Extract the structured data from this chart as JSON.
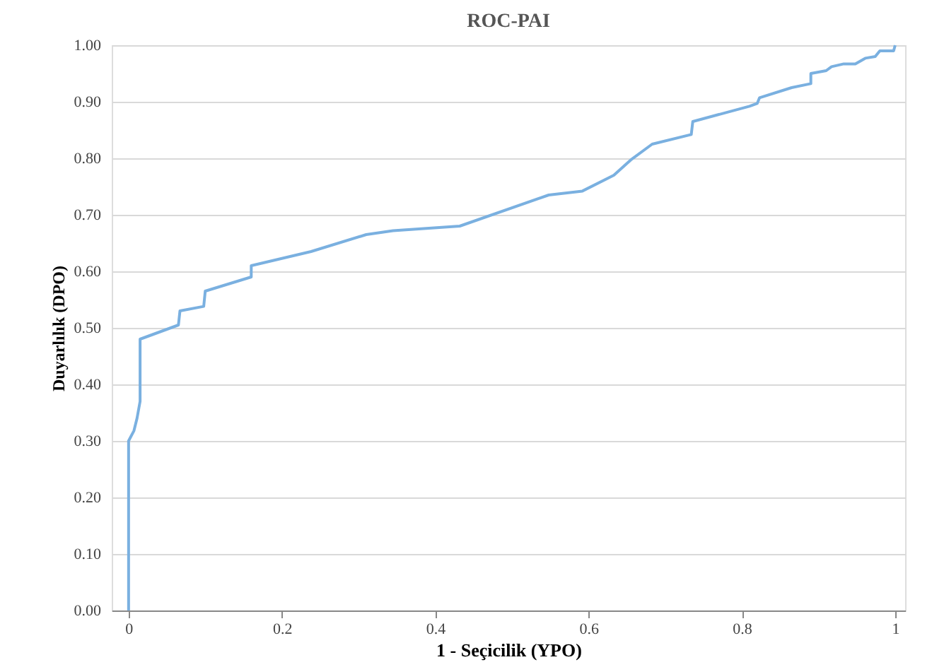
{
  "chart_data": {
    "type": "line",
    "title": "ROC-PAI",
    "xlabel": "1 - Seçicilik (YPO)",
    "ylabel": "Duyarlılık (DPO)",
    "x": [
      0,
      0,
      0.007,
      0.011,
      0.015,
      0.015,
      0.065,
      0.067,
      0.098,
      0.1,
      0.16,
      0.16,
      0.238,
      0.31,
      0.345,
      0.432,
      0.548,
      0.592,
      0.633,
      0.655,
      0.683,
      0.734,
      0.736,
      0.81,
      0.82,
      0.823,
      0.865,
      0.89,
      0.89,
      0.91,
      0.917,
      0.933,
      0.948,
      0.961,
      0.974,
      0.98,
      0.998,
      1.0
    ],
    "series": [
      {
        "color": "#7ab0e0",
        "values": [
          0,
          0.3,
          0.318,
          0.34,
          0.37,
          0.48,
          0.505,
          0.53,
          0.538,
          0.565,
          0.59,
          0.61,
          0.635,
          0.665,
          0.672,
          0.68,
          0.735,
          0.742,
          0.77,
          0.797,
          0.825,
          0.842,
          0.865,
          0.892,
          0.897,
          0.907,
          0.925,
          0.932,
          0.95,
          0.955,
          0.962,
          0.967,
          0.967,
          0.977,
          0.98,
          0.99,
          0.99,
          1.0
        ]
      }
    ],
    "xlim": [
      -0.022,
      1.013
    ],
    "ylim": [
      0,
      1
    ],
    "xticks": [
      0,
      0.2,
      0.4,
      0.6,
      0.8,
      1
    ],
    "yticks": [
      {
        "value": 0,
        "label": "0.00"
      },
      {
        "value": 0.1,
        "label": "0.10"
      },
      {
        "value": 0.2,
        "label": "0.20"
      },
      {
        "value": 0.3,
        "label": "0.30"
      },
      {
        "value": 0.4,
        "label": "0.40"
      },
      {
        "value": 0.5,
        "label": "0.50"
      },
      {
        "value": 0.6,
        "label": "0.60"
      },
      {
        "value": 0.7,
        "label": "0.70"
      },
      {
        "value": 0.8,
        "label": "0.80"
      },
      {
        "value": 0.9,
        "label": "0.90"
      },
      {
        "value": 1.0,
        "label": "1.00"
      }
    ],
    "grid": "y",
    "marker": "none",
    "line_style": "solid"
  }
}
